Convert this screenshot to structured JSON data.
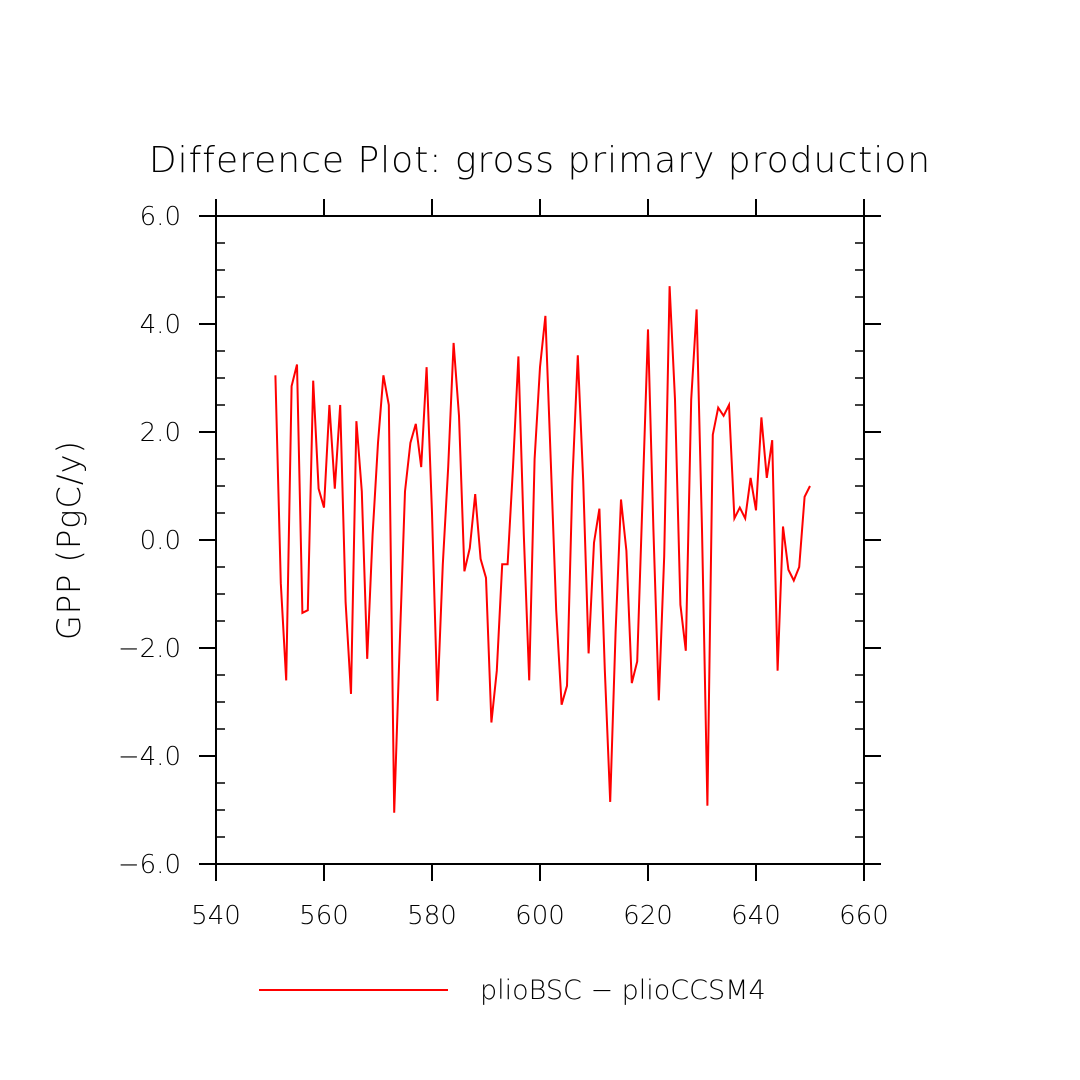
{
  "chart_data": {
    "type": "line",
    "title": "Difference Plot: gross primary production",
    "xlabel": "",
    "ylabel": "GPP  (PgC/y)",
    "xlim": [
      540,
      660
    ],
    "ylim": [
      -6.0,
      6.0
    ],
    "xticks": [
      540,
      560,
      580,
      600,
      620,
      640,
      660
    ],
    "xtick_labels": [
      "540",
      "560",
      "580",
      "600",
      "620",
      "640",
      "660"
    ],
    "yticks": [
      -6.0,
      -4.0,
      -2.0,
      0.0,
      2.0,
      4.0,
      6.0
    ],
    "ytick_labels": [
      "−6.0",
      "−4.0",
      "−2.0",
      "0.0",
      "2.0",
      "4.0",
      "6.0"
    ],
    "grid": false,
    "legend_position": "bottom",
    "series": [
      {
        "name": "plioBSC − plioCCSM4",
        "color": "#ff0000",
        "x": [
          551,
          552,
          553,
          554,
          555,
          556,
          557,
          558,
          559,
          560,
          561,
          562,
          563,
          564,
          565,
          566,
          567,
          568,
          569,
          570,
          571,
          572,
          573,
          574,
          575,
          576,
          577,
          578,
          579,
          580,
          581,
          582,
          583,
          584,
          585,
          586,
          587,
          588,
          589,
          590,
          591,
          592,
          593,
          594,
          595,
          596,
          597,
          598,
          599,
          600,
          601,
          602,
          603,
          604,
          605,
          606,
          607,
          608,
          609,
          610,
          611,
          612,
          613,
          614,
          615,
          616,
          617,
          618,
          619,
          620,
          621,
          622,
          623,
          624,
          625,
          626,
          627,
          628,
          629,
          630,
          631,
          632,
          633,
          634,
          635,
          636,
          637,
          638,
          639,
          640,
          641,
          642,
          643,
          644,
          645,
          646,
          647,
          648,
          649,
          650
        ],
        "y": [
          3.05,
          -0.8,
          -2.6,
          2.85,
          3.25,
          -1.35,
          -1.3,
          2.95,
          0.95,
          0.6,
          2.5,
          0.95,
          2.5,
          -1.15,
          -2.85,
          2.2,
          0.9,
          -2.2,
          0.1,
          1.8,
          3.05,
          2.5,
          -5.05,
          -2.0,
          0.9,
          1.8,
          2.15,
          1.35,
          3.2,
          0.5,
          -2.98,
          -0.45,
          1.35,
          3.65,
          2.3,
          -0.58,
          -0.15,
          0.85,
          -0.35,
          -0.7,
          -3.38,
          -2.42,
          -0.45,
          -0.45,
          1.35,
          3.4,
          0.1,
          -2.6,
          1.5,
          3.2,
          4.15,
          1.45,
          -1.3,
          -3.05,
          -2.7,
          1.1,
          3.42,
          1.1,
          -2.1,
          -0.05,
          0.58,
          -2.4,
          -4.85,
          -1.7,
          0.75,
          -0.2,
          -2.65,
          -2.25,
          0.8,
          3.9,
          0.2,
          -2.97,
          -0.3,
          4.7,
          2.6,
          -1.2,
          -2.05,
          2.6,
          4.27,
          0.2,
          -4.92,
          1.95,
          2.45,
          2.3,
          2.5,
          0.4,
          0.6,
          0.4,
          1.15,
          0.55,
          2.27,
          1.15,
          1.85,
          -2.42,
          0.25,
          -0.55,
          -0.75,
          -0.5,
          0.8,
          1.0
        ]
      }
    ]
  }
}
